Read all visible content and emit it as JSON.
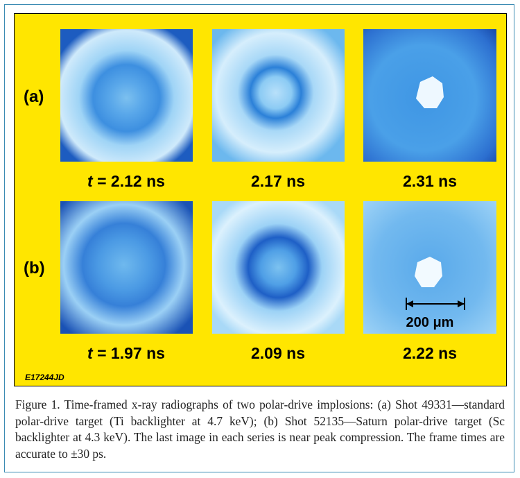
{
  "figure": {
    "rows": [
      {
        "label": "(a)",
        "frames": [
          {
            "italic": "t",
            "text": " = 2.12 ns"
          },
          {
            "text": "2.17 ns"
          },
          {
            "text": "2.31 ns"
          }
        ]
      },
      {
        "label": "(b)",
        "frames": [
          {
            "italic": "t",
            "text": " = 1.97 ns"
          },
          {
            "text": "2.09 ns"
          },
          {
            "text": "2.22 ns"
          }
        ]
      }
    ],
    "scale_bar": "200 μm",
    "id": "E17244JD",
    "caption": "Figure 1. Time-framed x-ray radiographs of two polar-drive implosions: (a) Shot 49331—standard polar-drive target (Ti backlighter at 4.7 keV); (b) Shot 52135—Saturn polar-drive target (Sc backlighter at 4.3 keV). The last image in each series is near peak compression. The frame times are accurate to ±30 ps."
  }
}
